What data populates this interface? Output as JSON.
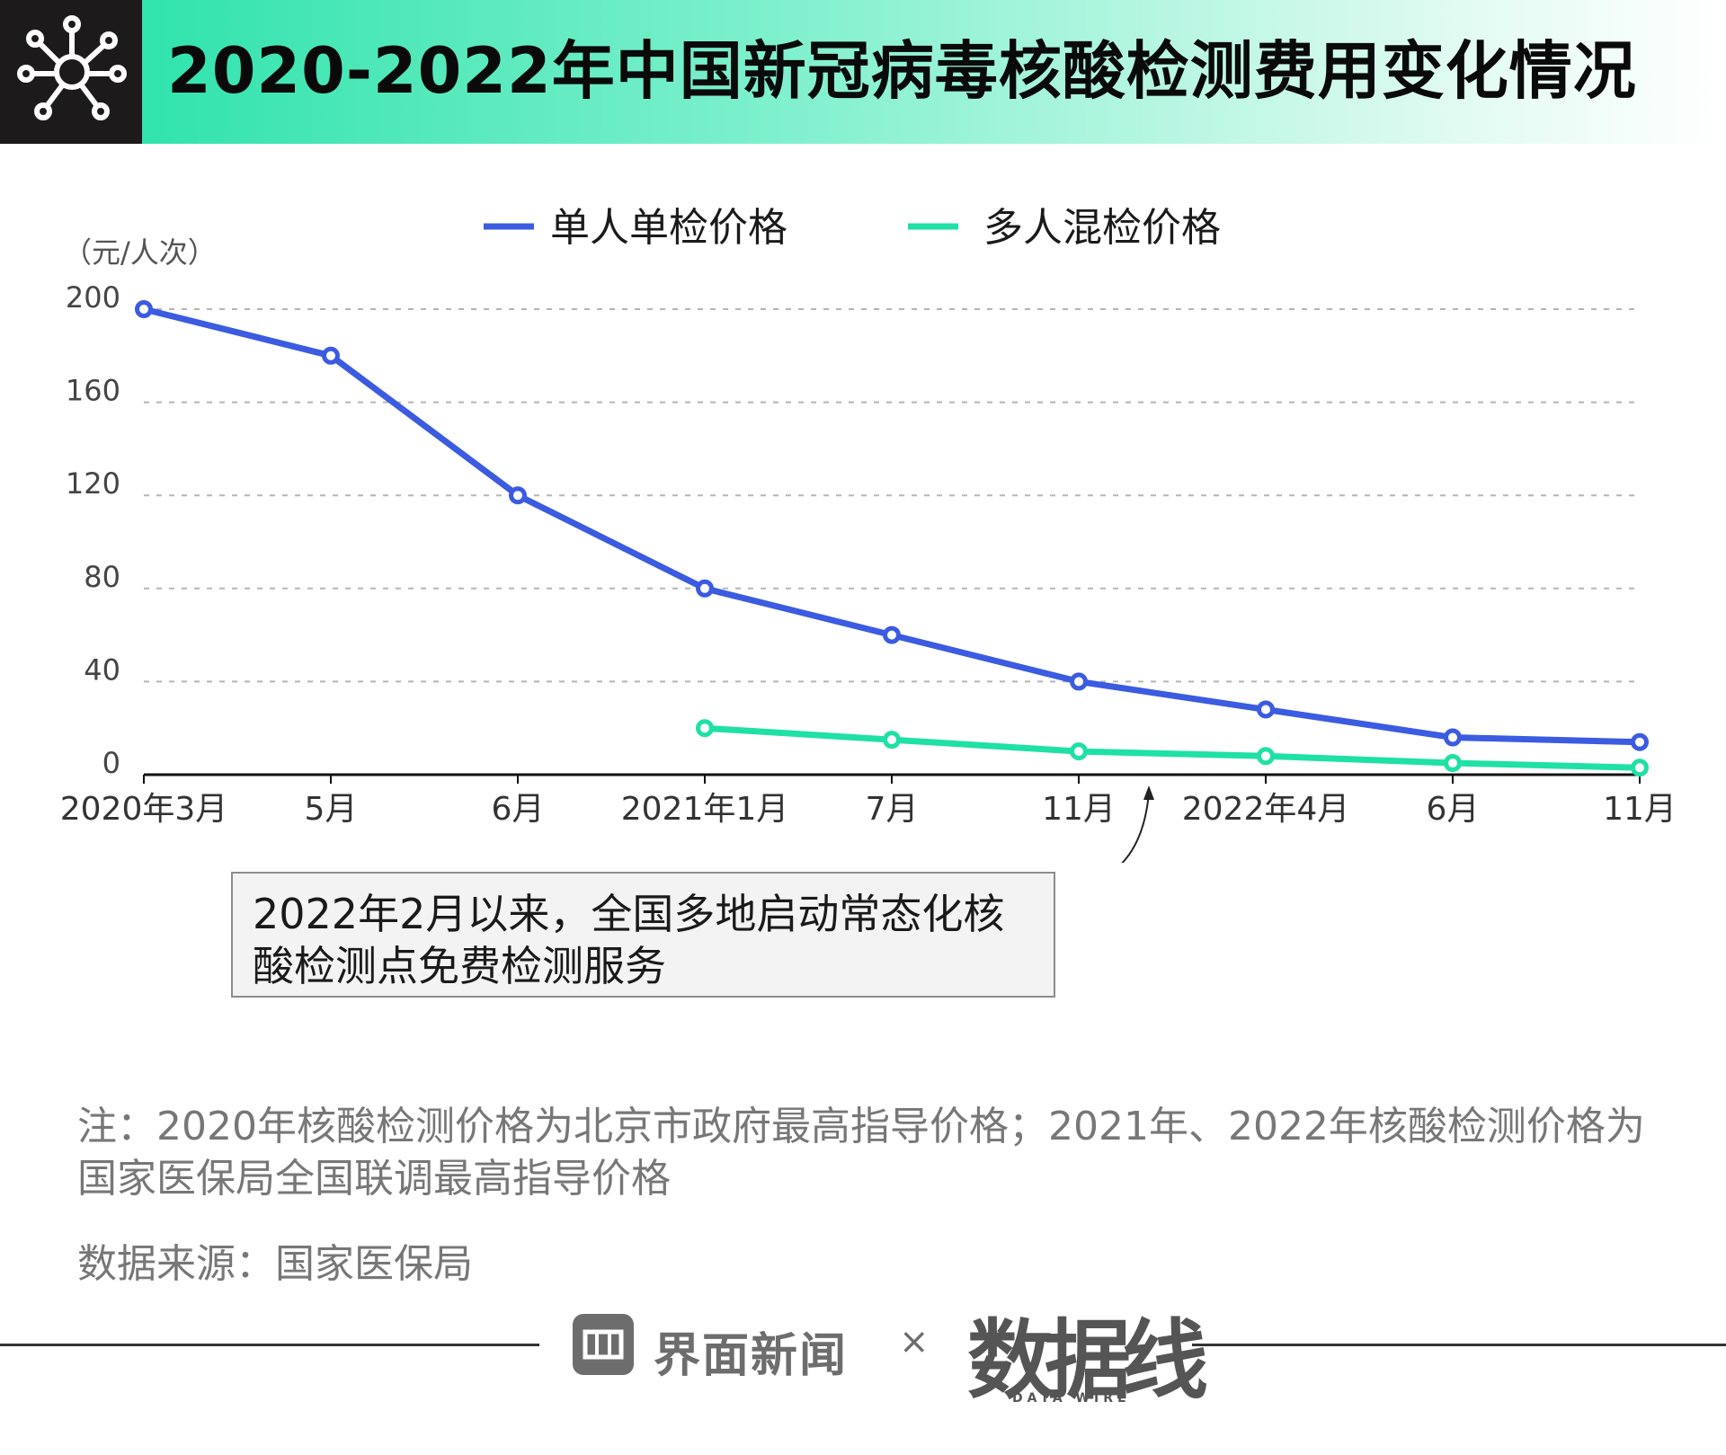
{
  "header": {
    "title": "2020-2022年中国新冠病毒核酸检测费用变化情况",
    "icon": "virus-network-icon"
  },
  "colors": {
    "single": "#3b5be0",
    "pooled": "#1fe0a5",
    "header_bg": "#1c1a1b"
  },
  "chart_data": {
    "type": "line",
    "title": "2020-2022年中国新冠病毒核酸检测费用变化情况",
    "ylabel": "（元/人次）",
    "xlabel": "",
    "categories": [
      "2020年3月",
      "5月",
      "6月",
      "2021年1月",
      "7月",
      "11月",
      "2022年4月",
      "6月",
      "11月"
    ],
    "ylim": [
      0,
      200
    ],
    "yticks": [
      0,
      40,
      80,
      120,
      160,
      200
    ],
    "grid": true,
    "legend_position": "top-center",
    "series": [
      {
        "name": "单人单检价格",
        "values": [
          200,
          180,
          120,
          80,
          60,
          40,
          28,
          16,
          14
        ]
      },
      {
        "name": "多人混检价格",
        "values": [
          null,
          null,
          null,
          20,
          15,
          10,
          8,
          5,
          3
        ]
      }
    ],
    "annotation": {
      "text": "2022年2月以来，全国多地启动常态化核酸检测点免费检测服务",
      "line1": "2022年2月以来，全国多地启动常态化核",
      "line2": "酸检测点免费检测服务",
      "x_position": "between 11月 and 2022年4月"
    }
  },
  "note": "注：2020年核酸检测价格为北京市政府最高指导价格；2021年、2022年核酸检测价格为国家医保局全国联调最高指导价格",
  "source": "数据来源：国家医保局",
  "footer": {
    "brand": "界面新闻",
    "times": "×",
    "mark": "数据线",
    "mark_sub": "DATA WIRE"
  }
}
